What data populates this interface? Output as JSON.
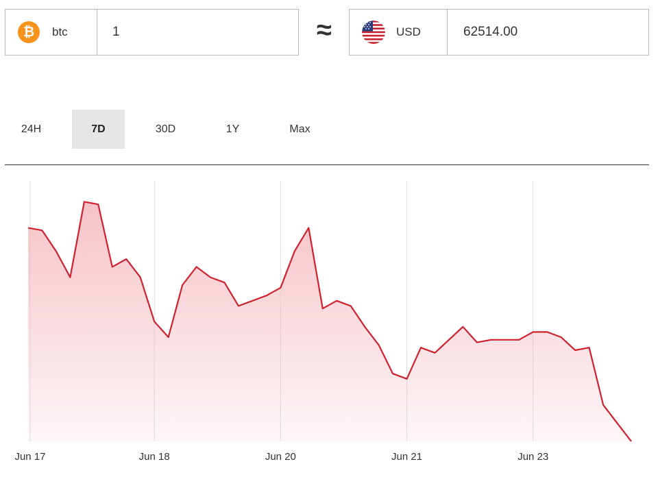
{
  "converter": {
    "from": {
      "code": "btc",
      "value": "1",
      "icon": "bitcoin-icon",
      "icon_color": "#f7931a",
      "icon_glyph": "₿"
    },
    "approx_symbol": "≈",
    "to": {
      "code": "USD",
      "value": "62514.00",
      "icon": "us-flag-icon"
    }
  },
  "tabs": [
    {
      "label": "24H",
      "active": false
    },
    {
      "label": "7D",
      "active": true
    },
    {
      "label": "30D",
      "active": false
    },
    {
      "label": "1Y",
      "active": false
    },
    {
      "label": "Max",
      "active": false
    }
  ],
  "chart_data": {
    "type": "area",
    "line_color": "#d0202e",
    "fill_color": "#f4b8bf",
    "grid": "vertical",
    "x_ticks": [
      {
        "label": "Jun 17",
        "x": 0
      },
      {
        "label": "Jun 18",
        "x": 9
      },
      {
        "label": "Jun 20",
        "x": 18
      },
      {
        "label": "Jun 21",
        "x": 27
      },
      {
        "label": "Jun 23",
        "x": 36
      }
    ],
    "ylim": [
      0,
      100
    ],
    "values": [
      82,
      81,
      73,
      63,
      92,
      91,
      67,
      70,
      63,
      46,
      40,
      60,
      67,
      63,
      61,
      52,
      54,
      56,
      59,
      73,
      82,
      51,
      54,
      52,
      44,
      37,
      26,
      24,
      36,
      34,
      39,
      44,
      38,
      39,
      39,
      39,
      42,
      42,
      40,
      35,
      36,
      14,
      7,
      0
    ]
  }
}
